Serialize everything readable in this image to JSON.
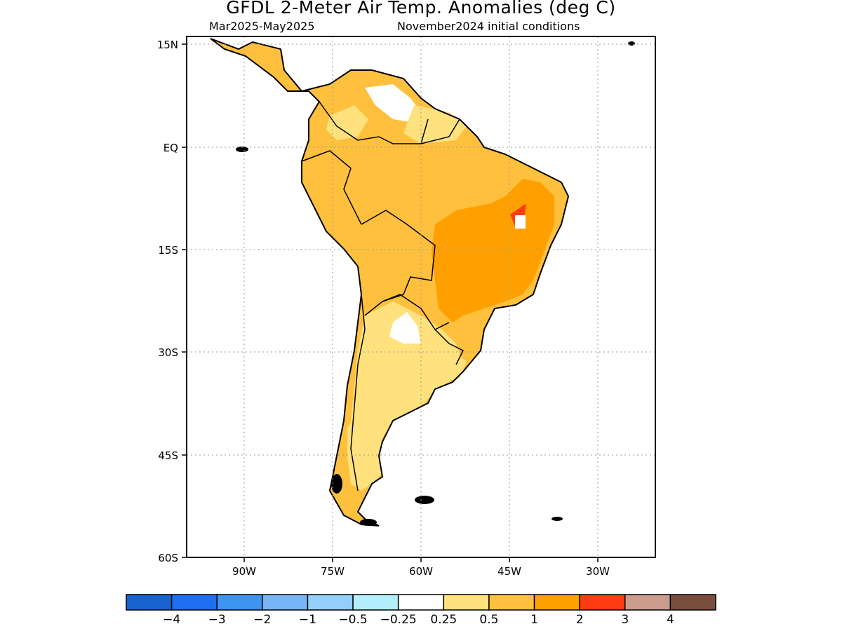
{
  "title": "GFDL 2-Meter Air Temp. Anomalies (deg C)",
  "subtitle_left": "Mar2025-May2025",
  "subtitle_right": "November2024 initial conditions",
  "map": {
    "region": "South America",
    "lat_labels": [
      "15N",
      "EQ",
      "15S",
      "30S",
      "45S",
      "60S"
    ],
    "lon_labels": [
      "90W",
      "75W",
      "60W",
      "45W",
      "30W"
    ],
    "lat_values": [
      15,
      0,
      -15,
      -30,
      -45,
      -60
    ],
    "lon_values": [
      -90,
      -75,
      -60,
      -45,
      -30
    ],
    "lon_range": [
      -100,
      -20
    ],
    "lat_range": [
      -60,
      16
    ],
    "grid": true,
    "grid_style": "dotted"
  },
  "legend": {
    "colors": [
      "#1763cf",
      "#1f6ff0",
      "#3f94f0",
      "#77b5f7",
      "#93cff8",
      "#b2eefc",
      "#ffffff",
      "#ffe27d",
      "#ffc03d",
      "#ffa000",
      "#ff3c12",
      "#c99c8d",
      "#7a4e3f"
    ],
    "labels": [
      "−4",
      "−3",
      "−2",
      "−1",
      "−0.5",
      "−0.25",
      "0.25",
      "0.5",
      "1",
      "2",
      "3",
      "4"
    ]
  }
}
